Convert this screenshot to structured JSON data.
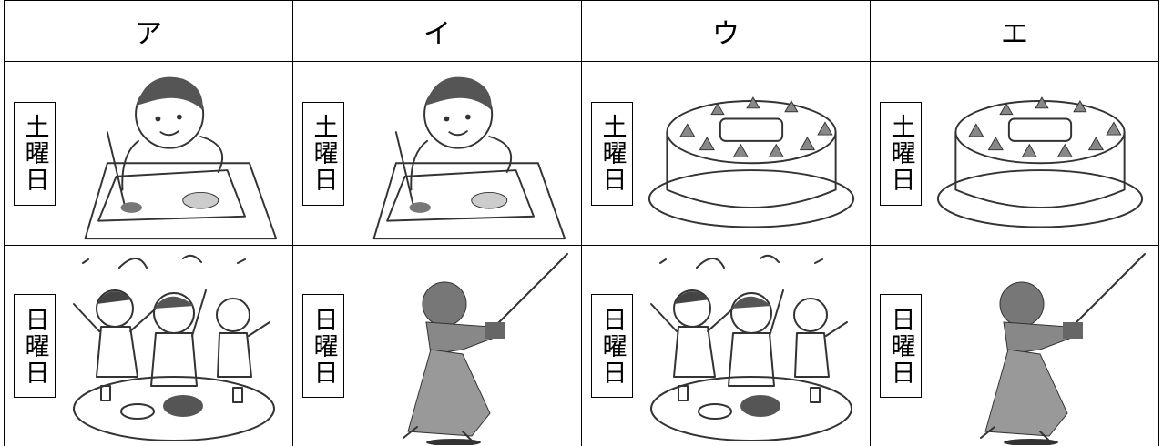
{
  "table": {
    "header": [
      "ア",
      "イ",
      "ウ",
      "エ"
    ],
    "rows": [
      [
        "土曜日",
        "土曜日",
        "土曜日",
        "土曜日"
      ],
      [
        "日曜日",
        "日曜日",
        "日曜日",
        "日曜日"
      ]
    ]
  }
}
